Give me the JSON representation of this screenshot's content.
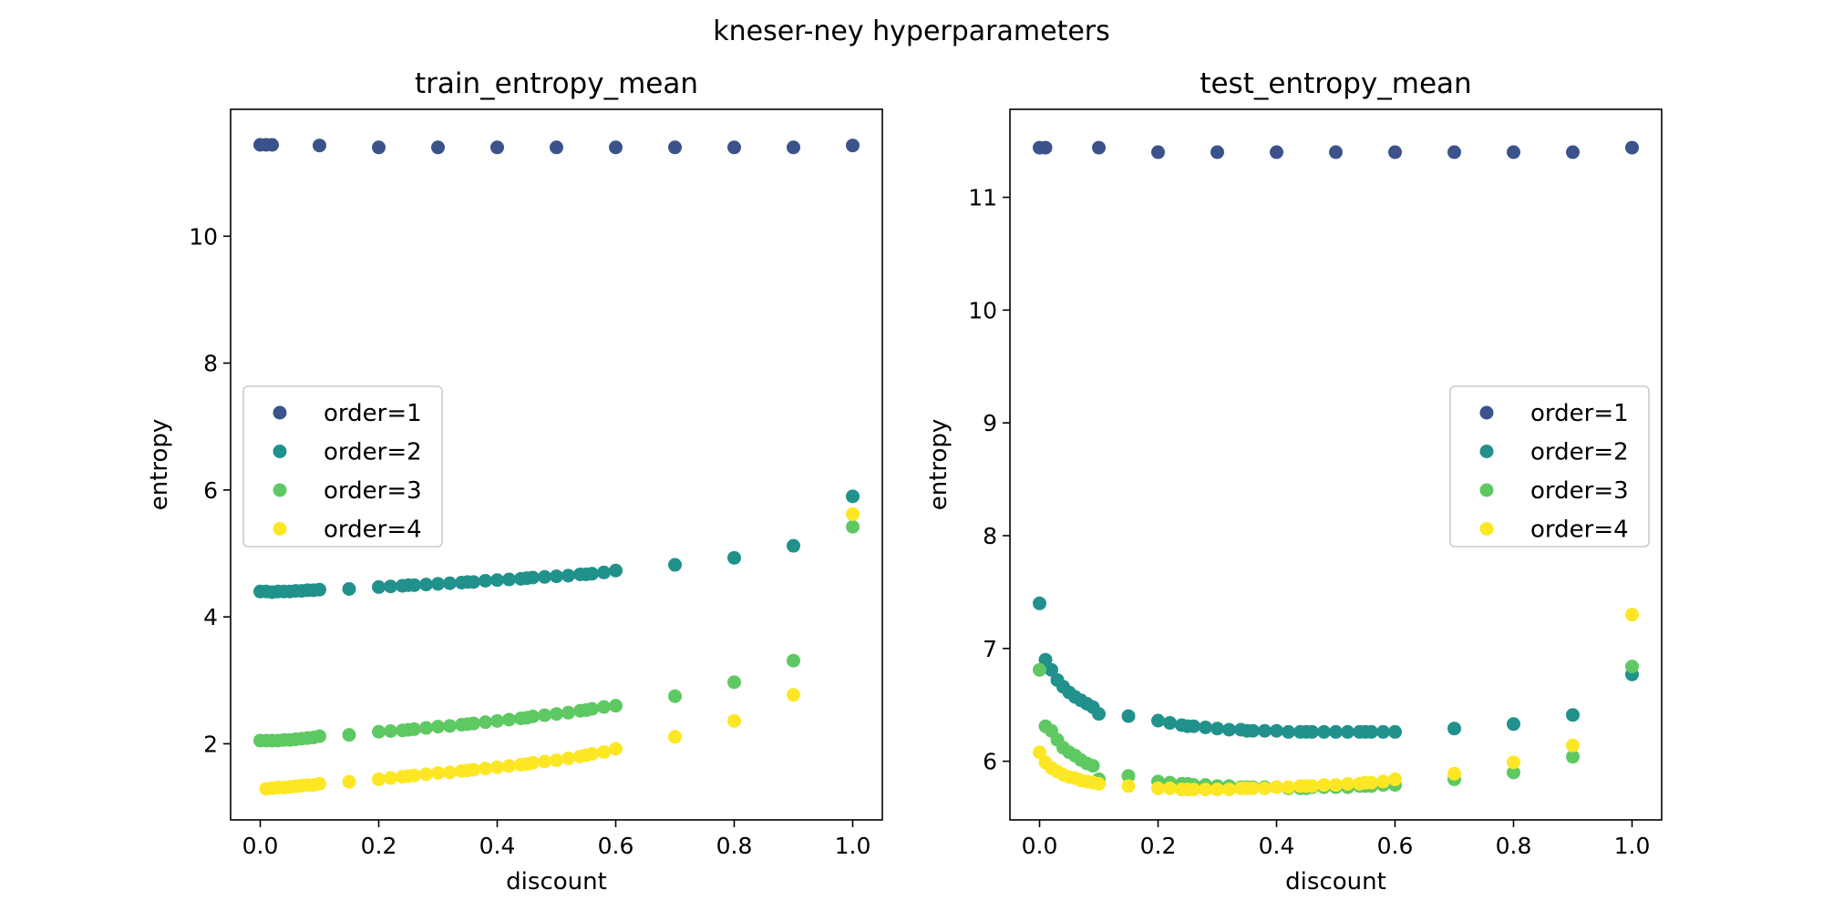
{
  "figure": {
    "title": "kneser-ney hyperparameters",
    "series_colors": {
      "order=1": "#3b528b",
      "order=2": "#21918c",
      "order=3": "#5ec962",
      "order=4": "#fde725"
    }
  },
  "chart_data": [
    {
      "type": "scatter",
      "title": "train_entropy_mean",
      "xlabel": "discount",
      "ylabel": "entropy",
      "xlim": [
        -0.05,
        1.05
      ],
      "ylim": [
        0.8,
        12.0
      ],
      "xticks": [
        0.0,
        0.2,
        0.4,
        0.6,
        0.8,
        1.0
      ],
      "xtick_labels": [
        "0.0",
        "0.2",
        "0.4",
        "0.6",
        "0.8",
        "1.0"
      ],
      "yticks": [
        2,
        4,
        6,
        8,
        10
      ],
      "ytick_labels": [
        "2",
        "4",
        "6",
        "8",
        "10"
      ],
      "grid": false,
      "legend": {
        "position": "center-left",
        "entries": [
          "order=1",
          "order=2",
          "order=3",
          "order=4"
        ]
      },
      "series": [
        {
          "name": "order=1",
          "color": "#3b528b",
          "x": [
            0.0,
            0.01,
            0.02,
            0.1,
            0.2,
            0.3,
            0.4,
            0.5,
            0.6,
            0.7,
            0.8,
            0.9,
            1.0
          ],
          "y": [
            11.44,
            11.44,
            11.44,
            11.43,
            11.4,
            11.4,
            11.4,
            11.4,
            11.4,
            11.4,
            11.4,
            11.4,
            11.43
          ]
        },
        {
          "name": "order=2",
          "color": "#21918c",
          "x": [
            0.0,
            0.01,
            0.02,
            0.03,
            0.04,
            0.05,
            0.06,
            0.07,
            0.08,
            0.09,
            0.1,
            0.15,
            0.2,
            0.22,
            0.24,
            0.25,
            0.26,
            0.28,
            0.3,
            0.32,
            0.34,
            0.35,
            0.36,
            0.38,
            0.4,
            0.42,
            0.44,
            0.45,
            0.46,
            0.48,
            0.5,
            0.52,
            0.54,
            0.55,
            0.56,
            0.58,
            0.6,
            0.7,
            0.8,
            0.9,
            1.0
          ],
          "y": [
            4.4,
            4.4,
            4.39,
            4.4,
            4.4,
            4.4,
            4.41,
            4.41,
            4.42,
            4.42,
            4.43,
            4.44,
            4.47,
            4.48,
            4.49,
            4.5,
            4.5,
            4.51,
            4.52,
            4.53,
            4.54,
            4.55,
            4.55,
            4.57,
            4.58,
            4.59,
            4.6,
            4.61,
            4.62,
            4.63,
            4.64,
            4.65,
            4.67,
            4.67,
            4.68,
            4.7,
            4.73,
            4.82,
            4.93,
            5.12,
            5.9
          ]
        },
        {
          "name": "order=3",
          "color": "#5ec962",
          "x": [
            0.0,
            0.01,
            0.02,
            0.03,
            0.04,
            0.05,
            0.06,
            0.07,
            0.08,
            0.09,
            0.1,
            0.15,
            0.2,
            0.22,
            0.24,
            0.25,
            0.26,
            0.28,
            0.3,
            0.32,
            0.34,
            0.35,
            0.36,
            0.38,
            0.4,
            0.42,
            0.44,
            0.45,
            0.46,
            0.48,
            0.5,
            0.52,
            0.54,
            0.55,
            0.56,
            0.58,
            0.6,
            0.7,
            0.8,
            0.9,
            1.0
          ],
          "y": [
            2.05,
            2.05,
            2.05,
            2.05,
            2.06,
            2.06,
            2.07,
            2.08,
            2.09,
            2.1,
            2.12,
            2.14,
            2.19,
            2.2,
            2.21,
            2.22,
            2.23,
            2.25,
            2.27,
            2.28,
            2.3,
            2.31,
            2.32,
            2.34,
            2.36,
            2.38,
            2.4,
            2.41,
            2.43,
            2.45,
            2.47,
            2.49,
            2.52,
            2.53,
            2.55,
            2.58,
            2.6,
            2.75,
            2.97,
            3.31,
            5.42
          ]
        },
        {
          "name": "order=4",
          "color": "#fde725",
          "x": [
            0.01,
            0.02,
            0.03,
            0.04,
            0.05,
            0.06,
            0.07,
            0.08,
            0.09,
            0.1,
            0.15,
            0.2,
            0.22,
            0.24,
            0.25,
            0.26,
            0.28,
            0.3,
            0.32,
            0.34,
            0.35,
            0.36,
            0.38,
            0.4,
            0.42,
            0.44,
            0.45,
            0.46,
            0.48,
            0.5,
            0.52,
            0.54,
            0.55,
            0.56,
            0.58,
            0.6,
            0.7,
            0.8,
            0.9,
            1.0
          ],
          "y": [
            1.29,
            1.3,
            1.31,
            1.31,
            1.32,
            1.33,
            1.34,
            1.35,
            1.35,
            1.37,
            1.4,
            1.44,
            1.46,
            1.48,
            1.49,
            1.5,
            1.52,
            1.54,
            1.55,
            1.57,
            1.58,
            1.59,
            1.61,
            1.63,
            1.65,
            1.67,
            1.68,
            1.7,
            1.72,
            1.74,
            1.77,
            1.8,
            1.82,
            1.84,
            1.87,
            1.92,
            2.11,
            2.36,
            2.77,
            5.62
          ]
        }
      ]
    },
    {
      "type": "scatter",
      "title": "test_entropy_mean",
      "xlabel": "discount",
      "ylabel": "entropy",
      "xlim": [
        -0.05,
        1.05
      ],
      "ylim": [
        5.48,
        11.78
      ],
      "xticks": [
        0.0,
        0.2,
        0.4,
        0.6,
        0.8,
        1.0
      ],
      "xtick_labels": [
        "0.0",
        "0.2",
        "0.4",
        "0.6",
        "0.8",
        "1.0"
      ],
      "yticks": [
        6,
        7,
        8,
        9,
        10,
        11
      ],
      "ytick_labels": [
        "6",
        "7",
        "8",
        "9",
        "10",
        "11"
      ],
      "grid": false,
      "legend": {
        "position": "center-right",
        "entries": [
          "order=1",
          "order=2",
          "order=3",
          "order=4"
        ]
      },
      "series": [
        {
          "name": "order=1",
          "color": "#3b528b",
          "x": [
            0.0,
            0.01,
            0.1,
            0.2,
            0.3,
            0.4,
            0.5,
            0.6,
            0.7,
            0.8,
            0.9,
            1.0
          ],
          "y": [
            11.44,
            11.44,
            11.44,
            11.4,
            11.4,
            11.4,
            11.4,
            11.4,
            11.4,
            11.4,
            11.4,
            11.44
          ]
        },
        {
          "name": "order=2",
          "color": "#21918c",
          "x": [
            0.0,
            0.01,
            0.02,
            0.03,
            0.04,
            0.05,
            0.06,
            0.07,
            0.08,
            0.09,
            0.1,
            0.15,
            0.2,
            0.22,
            0.24,
            0.25,
            0.26,
            0.28,
            0.3,
            0.32,
            0.34,
            0.35,
            0.36,
            0.38,
            0.4,
            0.42,
            0.44,
            0.45,
            0.46,
            0.48,
            0.5,
            0.52,
            0.54,
            0.55,
            0.56,
            0.58,
            0.6,
            0.7,
            0.8,
            0.9,
            1.0
          ],
          "y": [
            7.4,
            6.9,
            6.81,
            6.72,
            6.66,
            6.61,
            6.57,
            6.54,
            6.51,
            6.48,
            6.42,
            6.4,
            6.36,
            6.34,
            6.32,
            6.31,
            6.31,
            6.3,
            6.29,
            6.28,
            6.28,
            6.27,
            6.27,
            6.27,
            6.27,
            6.26,
            6.26,
            6.26,
            6.26,
            6.26,
            6.26,
            6.26,
            6.26,
            6.26,
            6.26,
            6.26,
            6.26,
            6.29,
            6.33,
            6.41,
            6.77
          ]
        },
        {
          "name": "order=3",
          "color": "#5ec962",
          "x": [
            0.0,
            0.01,
            0.02,
            0.03,
            0.04,
            0.05,
            0.06,
            0.07,
            0.08,
            0.09,
            0.1,
            0.15,
            0.2,
            0.22,
            0.24,
            0.25,
            0.26,
            0.28,
            0.3,
            0.32,
            0.34,
            0.35,
            0.36,
            0.38,
            0.4,
            0.42,
            0.44,
            0.45,
            0.46,
            0.48,
            0.5,
            0.52,
            0.54,
            0.55,
            0.56,
            0.58,
            0.6,
            0.7,
            0.8,
            0.9,
            1.0
          ],
          "y": [
            6.81,
            6.31,
            6.27,
            6.19,
            6.12,
            6.08,
            6.05,
            6.01,
            5.98,
            5.96,
            5.84,
            5.87,
            5.82,
            5.81,
            5.8,
            5.8,
            5.79,
            5.79,
            5.78,
            5.78,
            5.77,
            5.77,
            5.77,
            5.77,
            5.77,
            5.76,
            5.76,
            5.76,
            5.77,
            5.77,
            5.77,
            5.77,
            5.78,
            5.78,
            5.78,
            5.79,
            5.79,
            5.84,
            5.9,
            6.04,
            6.84
          ]
        },
        {
          "name": "order=4",
          "color": "#fde725",
          "x": [
            0.0,
            0.01,
            0.02,
            0.03,
            0.04,
            0.05,
            0.06,
            0.07,
            0.08,
            0.09,
            0.1,
            0.15,
            0.2,
            0.22,
            0.24,
            0.25,
            0.26,
            0.28,
            0.3,
            0.32,
            0.34,
            0.35,
            0.36,
            0.38,
            0.4,
            0.42,
            0.44,
            0.45,
            0.46,
            0.48,
            0.5,
            0.52,
            0.54,
            0.55,
            0.56,
            0.58,
            0.6,
            0.7,
            0.8,
            0.9,
            1.0
          ],
          "y": [
            6.08,
            5.99,
            5.94,
            5.91,
            5.88,
            5.86,
            5.85,
            5.83,
            5.82,
            5.81,
            5.8,
            5.78,
            5.76,
            5.76,
            5.75,
            5.75,
            5.75,
            5.75,
            5.75,
            5.75,
            5.76,
            5.76,
            5.76,
            5.76,
            5.77,
            5.77,
            5.78,
            5.78,
            5.78,
            5.79,
            5.79,
            5.8,
            5.8,
            5.81,
            5.81,
            5.82,
            5.84,
            5.89,
            5.99,
            6.14,
            7.3
          ]
        }
      ]
    }
  ]
}
